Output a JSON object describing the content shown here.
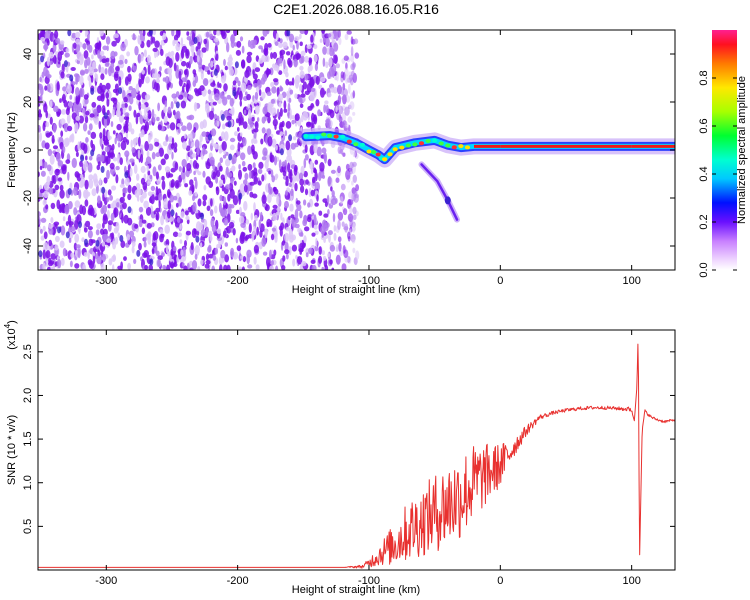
{
  "title": "C2E1.2026.088.16.05.R16",
  "colors": {
    "snr_line": "#e8312f",
    "dots": "#7a10e8",
    "spectrum_light": "#d8b8f6",
    "frame": "#000000"
  },
  "chart_data": [
    {
      "type": "heatmap",
      "title": "C2E1.2026.088.16.05.R16",
      "xlabel": "Height of straight line (km)",
      "ylabel": "Frequency (Hz)",
      "xlim": [
        -352,
        133
      ],
      "ylim": [
        -50,
        50
      ],
      "xticks": [
        -300,
        -200,
        -100,
        0,
        100
      ],
      "xtick_labels": [
        "-300",
        "-200",
        "-100",
        "0",
        "100"
      ],
      "yticks": [
        -40,
        -20,
        0,
        20,
        40
      ],
      "ytick_labels": [
        "-40",
        "-20",
        "0",
        "20",
        "40"
      ],
      "noise_region_x": [
        -352,
        -118
      ],
      "signal_trace": [
        {
          "x": -148,
          "y": 5.5
        },
        {
          "x": -130,
          "y": 6
        },
        {
          "x": -120,
          "y": 5
        },
        {
          "x": -110,
          "y": 3
        },
        {
          "x": -100,
          "y": 0
        },
        {
          "x": -93,
          "y": -2
        },
        {
          "x": -88,
          "y": -4
        },
        {
          "x": -80,
          "y": 1
        },
        {
          "x": -65,
          "y": 3
        },
        {
          "x": -50,
          "y": 4
        },
        {
          "x": -40,
          "y": 2
        },
        {
          "x": -30,
          "y": 1
        },
        {
          "x": -20,
          "y": 1.5
        },
        {
          "x": 0,
          "y": 1.5
        },
        {
          "x": 50,
          "y": 1.5
        },
        {
          "x": 100,
          "y": 1.5
        },
        {
          "x": 133,
          "y": 1.5
        }
      ],
      "branch_trace": [
        {
          "x": -60,
          "y": -6
        },
        {
          "x": -48,
          "y": -13
        },
        {
          "x": -40,
          "y": -21
        },
        {
          "x": -33,
          "y": -29
        }
      ],
      "colorbar": {
        "label": "Normalized spectral amplitude",
        "range": [
          0,
          1
        ],
        "ticks": [
          0.0,
          0.2,
          0.4,
          0.6,
          0.8
        ],
        "tick_labels": [
          "0.0",
          "0.2",
          "0.4",
          "0.6",
          "0.8"
        ]
      }
    },
    {
      "type": "line",
      "xlabel": "Height of straight line (km)",
      "ylabel": "SNR (10 * v/v)",
      "y_multiplier": "(x10",
      "y_multiplier_exp": "4",
      "y_multiplier_close": ")",
      "xlim": [
        -352,
        133
      ],
      "ylim": [
        0,
        27500
      ],
      "xticks": [
        -300,
        -200,
        -100,
        0,
        100
      ],
      "xtick_labels": [
        "-300",
        "-200",
        "-100",
        "0",
        "100"
      ],
      "yticks": [
        5000,
        10000,
        15000,
        20000,
        25000
      ],
      "ytick_labels": [
        "0.5",
        "1.0",
        "1.5",
        "2.0",
        "2.5"
      ],
      "series": [
        {
          "name": "SNR",
          "x": [
            -352,
            -120,
            -105,
            -100,
            -90,
            -80,
            -70,
            -60,
            -50,
            -40,
            -30,
            -20,
            -10,
            0,
            10,
            20,
            30,
            40,
            50,
            60,
            70,
            80,
            90,
            100,
            102,
            104,
            105,
            106,
            108,
            110,
            115,
            120,
            125,
            133
          ],
          "y": [
            300,
            300,
            400,
            800,
            2000,
            3000,
            4500,
            5500,
            6500,
            7500,
            8500,
            10000,
            11000,
            12000,
            14000,
            16000,
            17500,
            18000,
            18300,
            18500,
            18600,
            18600,
            18500,
            18400,
            17000,
            21000,
            27500,
            1000,
            16000,
            18200,
            17500,
            17200,
            17000,
            17200
          ],
          "noise_amplitude": [
            0,
            0,
            200,
            500,
            1500,
            2500,
            3500,
            4000,
            4500,
            5000,
            5000,
            4500,
            3500,
            2500,
            1200,
            600,
            300,
            200,
            200,
            200,
            200,
            200,
            200,
            300,
            0,
            0,
            0,
            0,
            0,
            200,
            150,
            150,
            150,
            150
          ]
        }
      ]
    }
  ]
}
